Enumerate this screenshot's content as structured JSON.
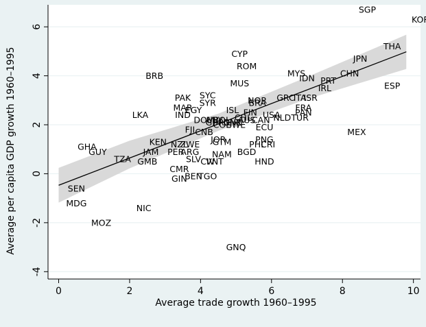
{
  "chart_data": {
    "type": "scatter",
    "title": "",
    "xlabel": "Average trade growth 1960–1995",
    "ylabel": "Average per capita GDP growth 1960–1995",
    "xlim": [
      -0.3,
      10.2
    ],
    "ylim": [
      -4.3,
      6.9
    ],
    "x_ticks": [
      0,
      2,
      4,
      6,
      8,
      10
    ],
    "y_ticks": [
      -4,
      -2,
      0,
      2,
      4,
      6
    ],
    "grid": "horizontal",
    "legend": "none",
    "marker": "country-code text labels",
    "fit_line": {
      "x0": 0.0,
      "y0": -0.47,
      "x1": 9.8,
      "y1": 4.98
    },
    "confidence_band": {
      "x": [
        0.0,
        2.0,
        4.5,
        7.0,
        9.8
      ],
      "lower": [
        -1.18,
        0.22,
        1.75,
        3.05,
        4.28
      ],
      "upper": [
        0.24,
        1.35,
        2.45,
        3.95,
        5.68
      ]
    },
    "colors": {
      "background": "#eaf2f3",
      "plot_area": "#ffffff",
      "gridline": "#eaf2f3",
      "band": "#d9d9d9",
      "fit_line": "#000000"
    },
    "points": [
      {
        "label": "SGP",
        "x": 8.7,
        "y": 6.7
      },
      {
        "label": "KOR",
        "x": 10.2,
        "y": 6.3
      },
      {
        "label": "THA",
        "x": 9.4,
        "y": 5.2
      },
      {
        "label": "JPN",
        "x": 8.5,
        "y": 4.7
      },
      {
        "label": "CHN",
        "x": 8.2,
        "y": 4.1
      },
      {
        "label": "ESP",
        "x": 9.4,
        "y": 3.6
      },
      {
        "label": "PRT",
        "x": 7.6,
        "y": 3.8
      },
      {
        "label": "IRL",
        "x": 7.5,
        "y": 3.5
      },
      {
        "label": "MYS",
        "x": 6.7,
        "y": 4.1
      },
      {
        "label": "IDN",
        "x": 7.0,
        "y": 3.9
      },
      {
        "label": "ISR",
        "x": 7.1,
        "y": 3.1
      },
      {
        "label": "ITA",
        "x": 6.8,
        "y": 3.1
      },
      {
        "label": "GRC",
        "x": 6.4,
        "y": 3.1
      },
      {
        "label": "FRA",
        "x": 6.9,
        "y": 2.7
      },
      {
        "label": "PAN",
        "x": 6.9,
        "y": 2.5
      },
      {
        "label": "TUR",
        "x": 6.8,
        "y": 2.3
      },
      {
        "label": "NLD",
        "x": 6.3,
        "y": 2.3
      },
      {
        "label": "USA",
        "x": 6.0,
        "y": 2.4
      },
      {
        "label": "CAN",
        "x": 5.7,
        "y": 2.2
      },
      {
        "label": "ECU",
        "x": 5.8,
        "y": 1.9
      },
      {
        "label": "MEX",
        "x": 8.4,
        "y": 1.7
      },
      {
        "label": "CYP",
        "x": 5.1,
        "y": 4.9
      },
      {
        "label": "ROM",
        "x": 5.3,
        "y": 4.4
      },
      {
        "label": "MUS",
        "x": 5.1,
        "y": 3.7
      },
      {
        "label": "NOR",
        "x": 5.6,
        "y": 3.0
      },
      {
        "label": "BRA",
        "x": 5.6,
        "y": 2.9
      },
      {
        "label": "ISL",
        "x": 4.9,
        "y": 2.6
      },
      {
        "label": "FIN",
        "x": 5.4,
        "y": 2.5
      },
      {
        "label": "CHL",
        "x": 5.2,
        "y": 2.3
      },
      {
        "label": "AUS",
        "x": 5.3,
        "y": 2.2
      },
      {
        "label": "BOL",
        "x": 4.6,
        "y": 2.2
      },
      {
        "label": "DNK",
        "x": 4.9,
        "y": 2.1
      },
      {
        "label": "GBR",
        "x": 4.4,
        "y": 2.1
      },
      {
        "label": "SWE",
        "x": 5.0,
        "y": 2.0
      },
      {
        "label": "COL",
        "x": 4.6,
        "y": 2.0
      },
      {
        "label": "CHE",
        "x": 4.9,
        "y": 2.1
      },
      {
        "label": "URY",
        "x": 4.4,
        "y": 2.2
      },
      {
        "label": "DOM",
        "x": 4.1,
        "y": 2.2
      },
      {
        "label": "PAK",
        "x": 3.5,
        "y": 3.1
      },
      {
        "label": "SYC",
        "x": 4.2,
        "y": 3.2
      },
      {
        "label": "SYR",
        "x": 4.2,
        "y": 2.9
      },
      {
        "label": "MAR",
        "x": 3.5,
        "y": 2.7
      },
      {
        "label": "EGY",
        "x": 3.8,
        "y": 2.6
      },
      {
        "label": "IND",
        "x": 3.5,
        "y": 2.4
      },
      {
        "label": "LKA",
        "x": 2.3,
        "y": 2.4
      },
      {
        "label": "BRB",
        "x": 2.7,
        "y": 4.0
      },
      {
        "label": "FJI",
        "x": 3.7,
        "y": 1.8
      },
      {
        "label": "CNB",
        "x": 4.1,
        "y": 1.7
      },
      {
        "label": "JOR",
        "x": 4.5,
        "y": 1.4
      },
      {
        "label": "GTM",
        "x": 4.6,
        "y": 1.3
      },
      {
        "label": "NAM",
        "x": 4.6,
        "y": 0.8
      },
      {
        "label": "BGD",
        "x": 5.3,
        "y": 0.9
      },
      {
        "label": "PNG",
        "x": 5.8,
        "y": 1.4
      },
      {
        "label": "PHL",
        "x": 5.6,
        "y": 1.2
      },
      {
        "label": "CRI",
        "x": 5.9,
        "y": 1.2
      },
      {
        "label": "HND",
        "x": 5.8,
        "y": 0.5
      },
      {
        "label": "KEN",
        "x": 2.8,
        "y": 1.3
      },
      {
        "label": "NZL",
        "x": 3.4,
        "y": 1.2
      },
      {
        "label": "ZWE",
        "x": 3.7,
        "y": 1.2
      },
      {
        "label": "JAM",
        "x": 2.6,
        "y": 0.9
      },
      {
        "label": "PER",
        "x": 3.3,
        "y": 0.9
      },
      {
        "label": "ARG",
        "x": 3.7,
        "y": 0.9
      },
      {
        "label": "SLV",
        "x": 3.8,
        "y": 0.6
      },
      {
        "label": "CIV",
        "x": 4.2,
        "y": 0.5
      },
      {
        "label": "VNT",
        "x": 4.4,
        "y": 0.5
      },
      {
        "label": "CMR",
        "x": 3.4,
        "y": 0.2
      },
      {
        "label": "BEN",
        "x": 3.8,
        "y": -0.1
      },
      {
        "label": "TGO",
        "x": 4.2,
        "y": -0.1
      },
      {
        "label": "GIN",
        "x": 3.4,
        "y": -0.2
      },
      {
        "label": "GMB",
        "x": 2.5,
        "y": 0.5
      },
      {
        "label": "TZA",
        "x": 1.8,
        "y": 0.6
      },
      {
        "label": "GHA",
        "x": 0.8,
        "y": 1.1
      },
      {
        "label": "GUY",
        "x": 1.1,
        "y": 0.9
      },
      {
        "label": "SEN",
        "x": 0.5,
        "y": -0.6
      },
      {
        "label": "MDG",
        "x": 0.5,
        "y": -1.2
      },
      {
        "label": "NIC",
        "x": 2.4,
        "y": -1.4
      },
      {
        "label": "MOZ",
        "x": 1.2,
        "y": -2.0
      },
      {
        "label": "GNQ",
        "x": 5.0,
        "y": -3.0
      }
    ]
  }
}
